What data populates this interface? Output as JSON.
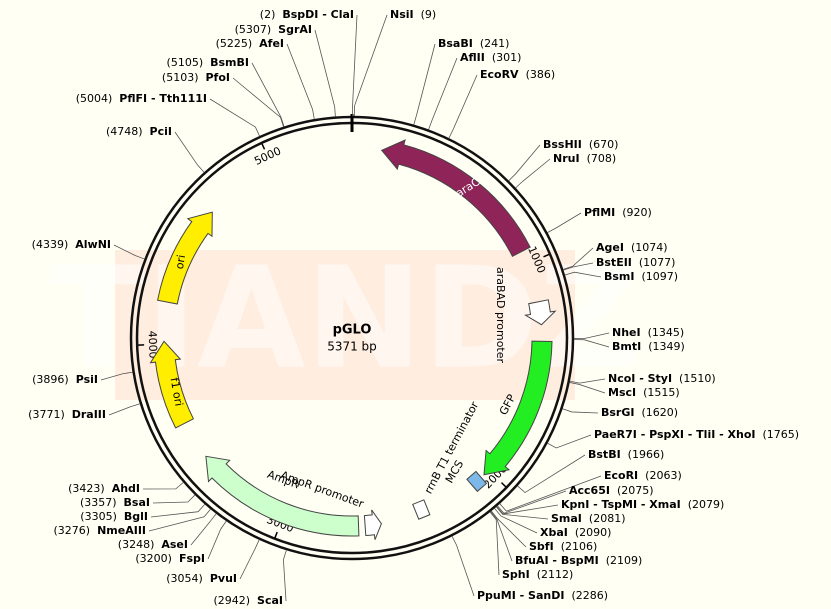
{
  "plasmid": {
    "name": "pGLO",
    "size": {
      "value": 5371,
      "label": "5371 bp"
    }
  },
  "watermark": "TIANDZ",
  "ruler": [
    1000,
    2000,
    3000,
    4000,
    5000
  ],
  "features": [
    {
      "label": "araC"
    },
    {
      "label": "araBAD promoter"
    },
    {
      "label": "GFP"
    },
    {
      "label": "MCS"
    },
    {
      "label": "rrnB T1 terminator"
    },
    {
      "label": "AmpR promoter"
    },
    {
      "label": "AmpR"
    },
    {
      "label": "f1 ori"
    },
    {
      "label": "ori"
    }
  ],
  "sites": [
    {
      "name": "NsiI",
      "position": {
        "value": 9,
        "label": "(9)"
      }
    },
    {
      "name": "BsaBI",
      "position": {
        "value": 241,
        "label": "(241)"
      }
    },
    {
      "name": "AflII",
      "position": {
        "value": 301,
        "label": "(301)"
      }
    },
    {
      "name": "EcoRV",
      "position": {
        "value": 386,
        "label": "(386)"
      }
    },
    {
      "name": "BssHII",
      "position": {
        "value": 670,
        "label": "(670)"
      }
    },
    {
      "name": "NruI",
      "position": {
        "value": 708,
        "label": "(708)"
      }
    },
    {
      "name": "PflMI",
      "position": {
        "value": 920,
        "label": "(920)"
      }
    },
    {
      "name": "AgeI",
      "position": {
        "value": 1074,
        "label": "(1074)"
      }
    },
    {
      "name": "BstEII",
      "position": {
        "value": 1077,
        "label": "(1077)"
      }
    },
    {
      "name": "BsmI",
      "position": {
        "value": 1097,
        "label": "(1097)"
      }
    },
    {
      "name": "NheI",
      "position": {
        "value": 1345,
        "label": "(1345)"
      }
    },
    {
      "name": "BmtI",
      "position": {
        "value": 1349,
        "label": "(1349)"
      }
    },
    {
      "name": "NcoI - StyI",
      "position": {
        "value": 1510,
        "label": "(1510)"
      }
    },
    {
      "name": "MscI",
      "position": {
        "value": 1515,
        "label": "(1515)"
      }
    },
    {
      "name": "BsrGI",
      "position": {
        "value": 1620,
        "label": "(1620)"
      }
    },
    {
      "name": "PaeR7I - PspXI - TliI - XhoI",
      "position": {
        "value": 1765,
        "label": "(1765)"
      }
    },
    {
      "name": "BstBI",
      "position": {
        "value": 1966,
        "label": "(1966)"
      }
    },
    {
      "name": "EcoRI",
      "position": {
        "value": 2063,
        "label": "(2063)"
      }
    },
    {
      "name": "Acc65I",
      "position": {
        "value": 2075,
        "label": "(2075)"
      }
    },
    {
      "name": "KpnI - TspMI - XmaI",
      "position": {
        "value": 2079,
        "label": "(2079)"
      }
    },
    {
      "name": "SmaI",
      "position": {
        "value": 2081,
        "label": "(2081)"
      }
    },
    {
      "name": "XbaI",
      "position": {
        "value": 2090,
        "label": "(2090)"
      }
    },
    {
      "name": "SbfI",
      "position": {
        "value": 2106,
        "label": "(2106)"
      }
    },
    {
      "name": "BfuAI - BspMI",
      "position": {
        "value": 2109,
        "label": "(2109)"
      }
    },
    {
      "name": "SphI",
      "position": {
        "value": 2112,
        "label": "(2112)"
      }
    },
    {
      "name": "PpuMI - SanDI",
      "position": {
        "value": 2286,
        "label": "(2286)"
      }
    },
    {
      "name": "ScaI",
      "position": {
        "value": 2942,
        "label": "(2942)"
      }
    },
    {
      "name": "PvuI",
      "position": {
        "value": 3054,
        "label": "(3054)"
      }
    },
    {
      "name": "FspI",
      "position": {
        "value": 3200,
        "label": "(3200)"
      }
    },
    {
      "name": "AseI",
      "position": {
        "value": 3248,
        "label": "(3248)"
      }
    },
    {
      "name": "NmeAIII",
      "position": {
        "value": 3276,
        "label": "(3276)"
      }
    },
    {
      "name": "BglI",
      "position": {
        "value": 3305,
        "label": "(3305)"
      }
    },
    {
      "name": "BsaI",
      "position": {
        "value": 3357,
        "label": "(3357)"
      }
    },
    {
      "name": "AhdI",
      "position": {
        "value": 3423,
        "label": "(3423)"
      }
    },
    {
      "name": "DraIII",
      "position": {
        "value": 3771,
        "label": "(3771)"
      }
    },
    {
      "name": "PsiI",
      "position": {
        "value": 3896,
        "label": "(3896)"
      }
    },
    {
      "name": "AlwNI",
      "position": {
        "value": 4339,
        "label": "(4339)"
      }
    },
    {
      "name": "PciI",
      "position": {
        "value": 4748,
        "label": "(4748)"
      }
    },
    {
      "name": "PflFI - Tth111I",
      "position": {
        "value": 5004,
        "label": "(5004)"
      }
    },
    {
      "name": "PfoI",
      "position": {
        "value": 5103,
        "label": "(5103)"
      }
    },
    {
      "name": "BsmBI",
      "position": {
        "value": 5105,
        "label": "(5105)"
      }
    },
    {
      "name": "AfeI",
      "position": {
        "value": 5225,
        "label": "(5225)"
      }
    },
    {
      "name": "SgrAI",
      "position": {
        "value": 5307,
        "label": "(5307)"
      }
    },
    {
      "name": "BspDI - ClaI",
      "position": {
        "value": 2,
        "label": "(2)"
      }
    }
  ]
}
